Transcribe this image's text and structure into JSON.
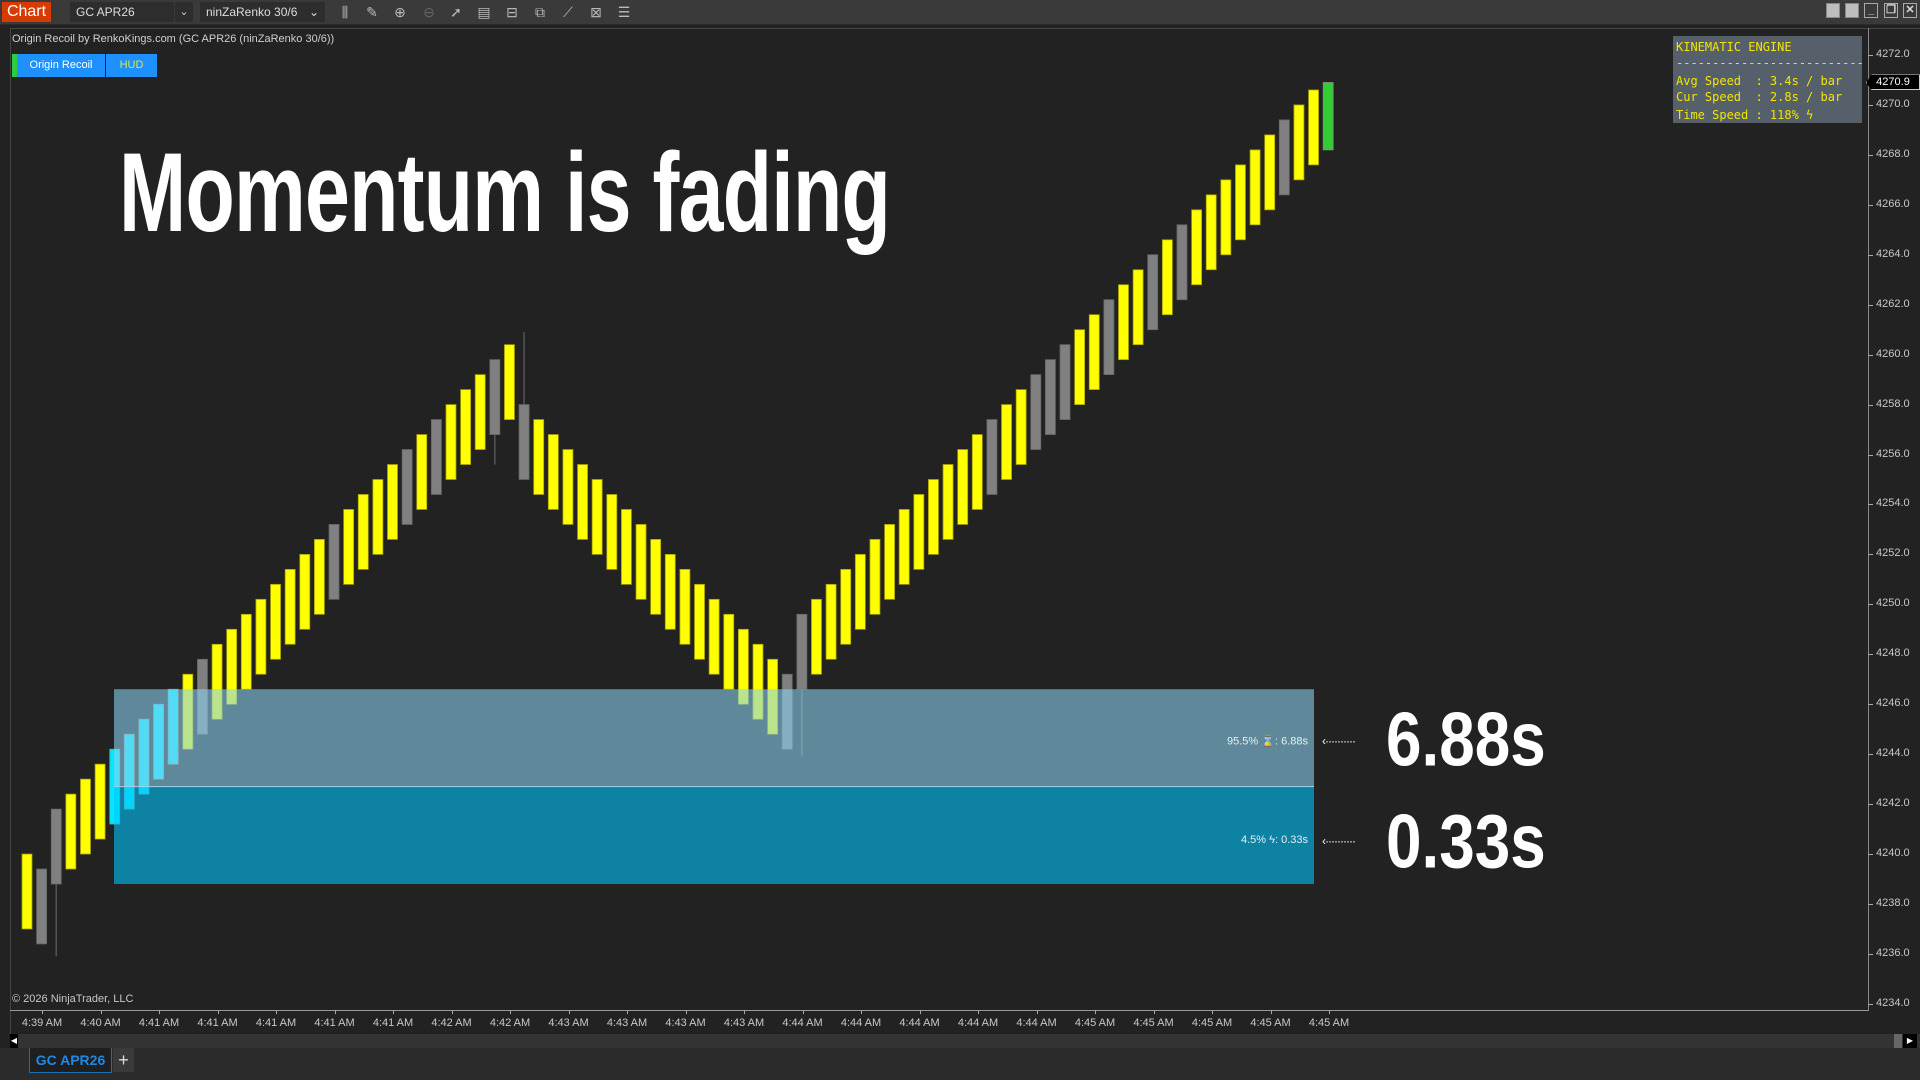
{
  "toolbar": {
    "chart_label": "Chart",
    "instrument": "GC APR26",
    "bar_type": "ninZaRenko 30/6",
    "icons": [
      "bar-type-icon",
      "pencil-icon",
      "zoom-in-icon",
      "zoom-out-icon",
      "pointer-icon",
      "data-box-icon",
      "properties-icon",
      "indicators-icon",
      "strategies-icon",
      "drawing-tools-icon",
      "list-icon"
    ],
    "window_buttons": [
      "tile-icon",
      "tile-icon",
      "minimize-icon",
      "restore-icon",
      "close-icon"
    ]
  },
  "chart_header": {
    "subtitle": "Origin Recoil by RenkoKings.com (GC APR26 (ninZaRenko 30/6))",
    "buttons": [
      {
        "label": "Origin Recoil",
        "color": "#ffffff"
      },
      {
        "label": "HUD",
        "color": "#d4e84a"
      }
    ]
  },
  "headline": "Momentum is fading",
  "hud": {
    "title": "KINEMATIC ENGINE",
    "divider": "--------------------------",
    "lines": [
      "Avg Speed  : 3.4s / bar",
      "Cur Speed  : 2.8s / bar",
      "Time Speed : 118% "
    ],
    "icon": "lightning-icon"
  },
  "zones": {
    "upper": {
      "percent": "95.5%",
      "icon": "hourglass-icon",
      "value": ": 6.88s",
      "callout": "6.88s",
      "color": "#89d1ee",
      "price_top": 4246.6,
      "price_bottom": 4242.7
    },
    "lower": {
      "percent": "4.5%",
      "icon": "lightning-icon",
      "value": ": 0.33s",
      "callout": "0.33s",
      "color": "#00c8ff",
      "price_top": 4242.7,
      "price_bottom": 4238.8
    },
    "arrow": "‹··········"
  },
  "copyright": "© 2026 NinjaTrader, LLC",
  "current_price": "4270.9",
  "tab": {
    "label": "GC APR26",
    "add": "+"
  },
  "chart_data": {
    "type": "renko",
    "y_ticks": [
      "4272.0",
      "4270.0",
      "4268.0",
      "4266.0",
      "4264.0",
      "4262.0",
      "4260.0",
      "4258.0",
      "4256.0",
      "4254.0",
      "4252.0",
      "4250.0",
      "4248.0",
      "4246.0",
      "4244.0",
      "4242.0",
      "4240.0",
      "4238.0",
      "4236.0",
      "4234.0"
    ],
    "ylim": [
      4234.0,
      4272.0
    ],
    "x_ticks": [
      "4:39 AM",
      "4:40 AM",
      "4:41 AM",
      "4:41 AM",
      "4:41 AM",
      "4:41 AM",
      "4:41 AM",
      "4:42 AM",
      "4:42 AM",
      "4:43 AM",
      "4:43 AM",
      "4:43 AM",
      "4:43 AM",
      "4:44 AM",
      "4:44 AM",
      "4:44 AM",
      "4:44 AM",
      "4:44 AM",
      "4:45 AM",
      "4:45 AM",
      "4:45 AM",
      "4:45 AM",
      "4:45 AM"
    ],
    "palette": {
      "Y": "#ffff00",
      "G": "#808080",
      "C": "#00e8ff",
      "L": "#33cc33"
    },
    "bars": [
      [
        4240.0,
        4237.0,
        "Y"
      ],
      [
        4239.4,
        4236.4,
        "G"
      ],
      [
        4241.8,
        4238.8,
        "G"
      ],
      [
        4242.4,
        4239.4,
        "Y"
      ],
      [
        4243.0,
        4240.0,
        "Y"
      ],
      [
        4243.6,
        4240.6,
        "Y"
      ],
      [
        4244.2,
        4241.2,
        "C"
      ],
      [
        4244.8,
        4241.8,
        "C"
      ],
      [
        4245.4,
        4242.4,
        "C"
      ],
      [
        4246.0,
        4243.0,
        "C"
      ],
      [
        4246.6,
        4243.6,
        "C"
      ],
      [
        4247.2,
        4244.2,
        "Y"
      ],
      [
        4247.8,
        4244.8,
        "G"
      ],
      [
        4248.4,
        4245.4,
        "Y"
      ],
      [
        4249.0,
        4246.0,
        "Y"
      ],
      [
        4249.6,
        4246.6,
        "Y"
      ],
      [
        4250.2,
        4247.2,
        "Y"
      ],
      [
        4250.8,
        4247.8,
        "Y"
      ],
      [
        4251.4,
        4248.4,
        "Y"
      ],
      [
        4252.0,
        4249.0,
        "Y"
      ],
      [
        4252.6,
        4249.6,
        "Y"
      ],
      [
        4253.2,
        4250.2,
        "G"
      ],
      [
        4253.8,
        4250.8,
        "Y"
      ],
      [
        4254.4,
        4251.4,
        "Y"
      ],
      [
        4255.0,
        4252.0,
        "Y"
      ],
      [
        4255.6,
        4252.6,
        "Y"
      ],
      [
        4256.2,
        4253.2,
        "G"
      ],
      [
        4256.8,
        4253.8,
        "Y"
      ],
      [
        4257.4,
        4254.4,
        "G"
      ],
      [
        4258.0,
        4255.0,
        "Y"
      ],
      [
        4258.6,
        4255.6,
        "Y"
      ],
      [
        4259.2,
        4256.2,
        "Y"
      ],
      [
        4259.8,
        4256.8,
        "G"
      ],
      [
        4260.4,
        4257.4,
        "Y"
      ],
      [
        4258.0,
        4255.0,
        "G"
      ],
      [
        4257.4,
        4254.4,
        "Y"
      ],
      [
        4256.8,
        4253.8,
        "Y"
      ],
      [
        4256.2,
        4253.2,
        "Y"
      ],
      [
        4255.6,
        4252.6,
        "Y"
      ],
      [
        4255.0,
        4252.0,
        "Y"
      ],
      [
        4254.4,
        4251.4,
        "Y"
      ],
      [
        4253.8,
        4250.8,
        "Y"
      ],
      [
        4253.2,
        4250.2,
        "Y"
      ],
      [
        4252.6,
        4249.6,
        "Y"
      ],
      [
        4252.0,
        4249.0,
        "Y"
      ],
      [
        4251.4,
        4248.4,
        "Y"
      ],
      [
        4250.8,
        4247.8,
        "Y"
      ],
      [
        4250.2,
        4247.2,
        "Y"
      ],
      [
        4249.6,
        4246.6,
        "Y"
      ],
      [
        4249.0,
        4246.0,
        "Y"
      ],
      [
        4248.4,
        4245.4,
        "Y"
      ],
      [
        4247.8,
        4244.8,
        "Y"
      ],
      [
        4247.2,
        4244.2,
        "G"
      ],
      [
        4249.6,
        4246.6,
        "G"
      ],
      [
        4250.2,
        4247.2,
        "Y"
      ],
      [
        4250.8,
        4247.8,
        "Y"
      ],
      [
        4251.4,
        4248.4,
        "Y"
      ],
      [
        4252.0,
        4249.0,
        "Y"
      ],
      [
        4252.6,
        4249.6,
        "Y"
      ],
      [
        4253.2,
        4250.2,
        "Y"
      ],
      [
        4253.8,
        4250.8,
        "Y"
      ],
      [
        4254.4,
        4251.4,
        "Y"
      ],
      [
        4255.0,
        4252.0,
        "Y"
      ],
      [
        4255.6,
        4252.6,
        "Y"
      ],
      [
        4256.2,
        4253.2,
        "Y"
      ],
      [
        4256.8,
        4253.8,
        "Y"
      ],
      [
        4257.4,
        4254.4,
        "G"
      ],
      [
        4258.0,
        4255.0,
        "Y"
      ],
      [
        4258.6,
        4255.6,
        "Y"
      ],
      [
        4259.2,
        4256.2,
        "G"
      ],
      [
        4259.8,
        4256.8,
        "G"
      ],
      [
        4260.4,
        4257.4,
        "G"
      ],
      [
        4261.0,
        4258.0,
        "Y"
      ],
      [
        4261.6,
        4258.6,
        "Y"
      ],
      [
        4262.2,
        4259.2,
        "G"
      ],
      [
        4262.8,
        4259.8,
        "Y"
      ],
      [
        4263.4,
        4260.4,
        "Y"
      ],
      [
        4264.0,
        4261.0,
        "G"
      ],
      [
        4264.6,
        4261.6,
        "Y"
      ],
      [
        4265.2,
        4262.2,
        "G"
      ],
      [
        4265.8,
        4262.8,
        "Y"
      ],
      [
        4266.4,
        4263.4,
        "Y"
      ],
      [
        4267.0,
        4264.0,
        "Y"
      ],
      [
        4267.6,
        4264.6,
        "Y"
      ],
      [
        4268.2,
        4265.2,
        "Y"
      ],
      [
        4268.8,
        4265.8,
        "Y"
      ],
      [
        4269.4,
        4266.4,
        "G"
      ],
      [
        4270.0,
        4267.0,
        "Y"
      ],
      [
        4270.6,
        4267.6,
        "Y"
      ],
      [
        4270.9,
        4268.2,
        "L"
      ]
    ],
    "wicks": [
      {
        "bar": 2,
        "high": 4241.8,
        "low": 4235.9
      },
      {
        "bar": 32,
        "high": 4259.8,
        "low": 4255.6
      },
      {
        "bar": 34,
        "high": 4260.9,
        "low": 4255.0
      },
      {
        "bar": 53,
        "high": 4249.6,
        "low": 4243.9
      }
    ]
  }
}
